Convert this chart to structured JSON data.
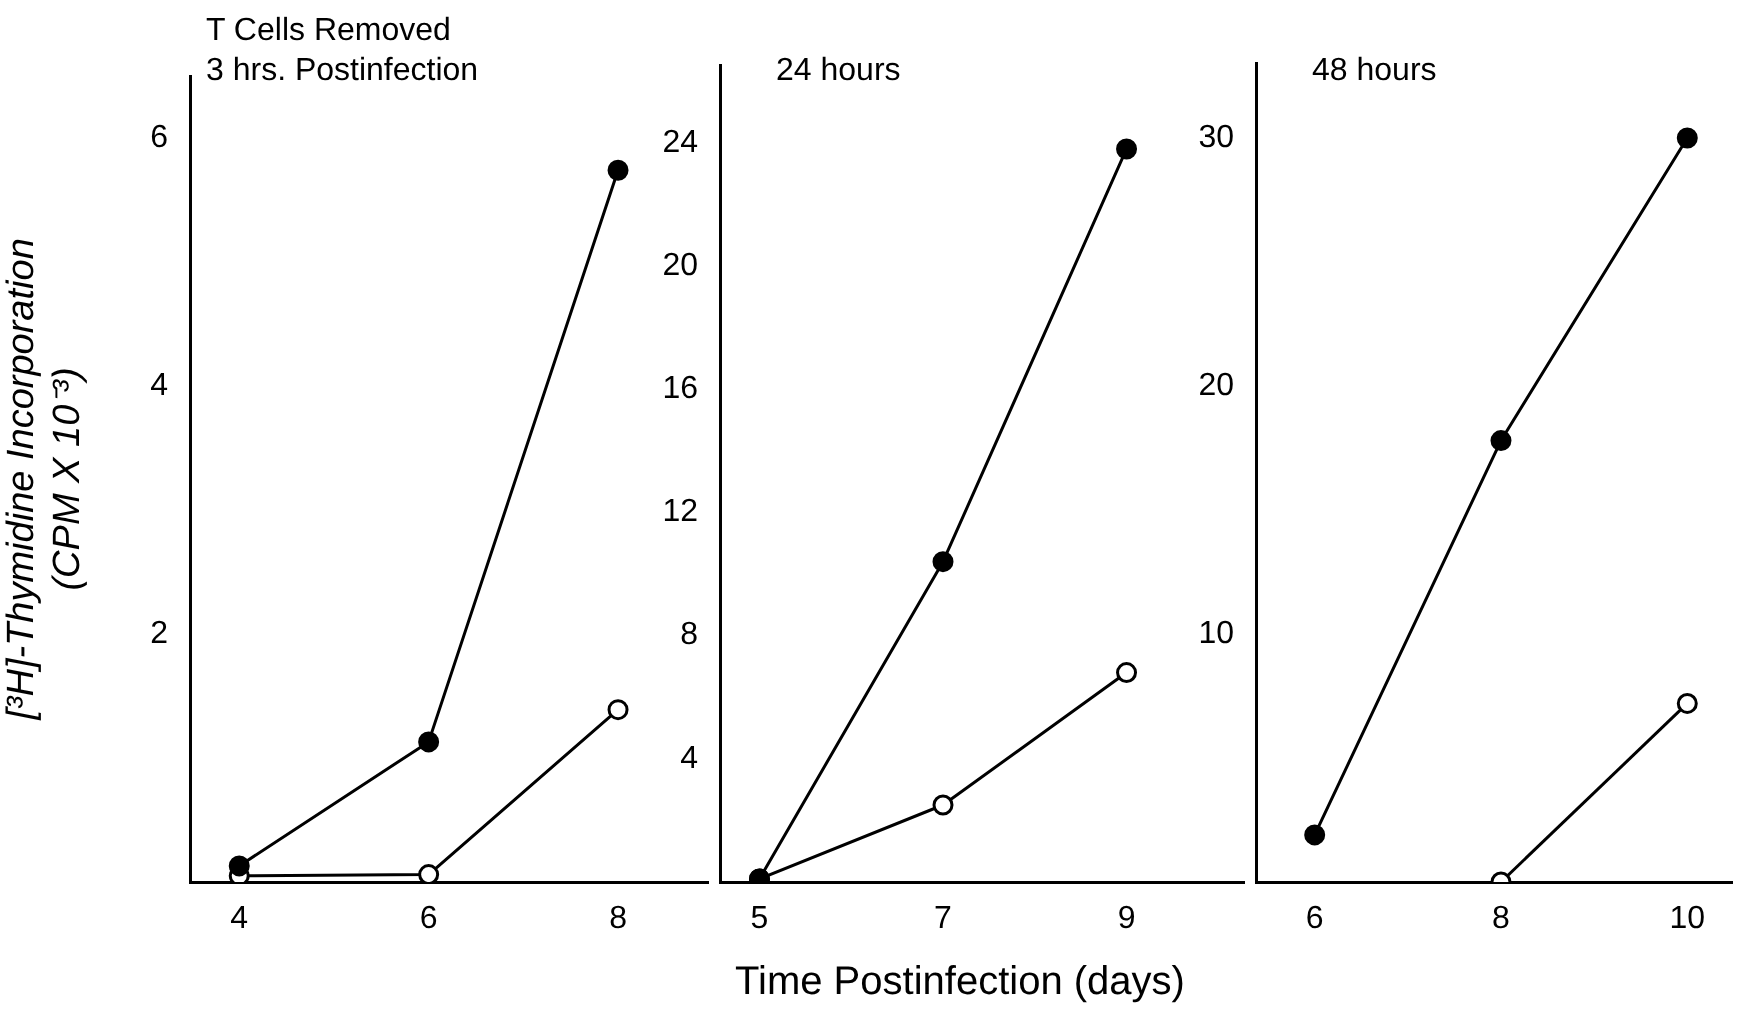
{
  "chart_data": [
    {
      "type": "line",
      "title": "T Cells Removed\n3 hrs. Postinfection",
      "ylabel": "[³H]-Thymidine Incorporation\n(CPM X 10⁻³)",
      "x": [
        4,
        6,
        8
      ],
      "xlim": [
        3.48,
        8.95
      ],
      "xticks": [
        4,
        6,
        8
      ],
      "ylim": [
        0,
        6.5
      ],
      "yticks": [
        2,
        4,
        6
      ],
      "marker": "circle",
      "grid": false,
      "legend": false,
      "series": [
        {
          "color": "#000000",
          "values": [
            0.13,
            1.13,
            5.74
          ]
        },
        {
          "color": "#000000",
          "values": [
            0.05,
            0.06,
            1.39
          ]
        }
      ]
    },
    {
      "type": "line",
      "title": "24 hours",
      "xlabel": "Time Postinfection (days)",
      "x": [
        5,
        7,
        9
      ],
      "xlim": [
        4.57,
        10.28
      ],
      "xticks": [
        5,
        7,
        9
      ],
      "ylim": [
        0,
        26.5
      ],
      "yticks": [
        4,
        8,
        12,
        16,
        20,
        24
      ],
      "marker": "circle",
      "grid": false,
      "legend": false,
      "series": [
        {
          "color": "#000000",
          "values": [
            0.1,
            10.4,
            23.8
          ]
        },
        {
          "color": "#000000",
          "values": [
            0.1,
            2.5,
            6.8
          ]
        }
      ]
    },
    {
      "type": "line",
      "title": "48 hours",
      "x": [
        6,
        8,
        10
      ],
      "xlim": [
        5.37,
        10.48
      ],
      "xticks": [
        6,
        8,
        10
      ],
      "ylim": [
        0,
        33
      ],
      "yticks": [
        10,
        20,
        30
      ],
      "marker": "circle",
      "grid": false,
      "legend": false,
      "series": [
        {
          "color": "#000000",
          "values": [
            1.9,
            17.8,
            30
          ]
        },
        {
          "color": "#000000",
          "values": [
            null,
            0,
            7.2
          ]
        }
      ]
    }
  ]
}
